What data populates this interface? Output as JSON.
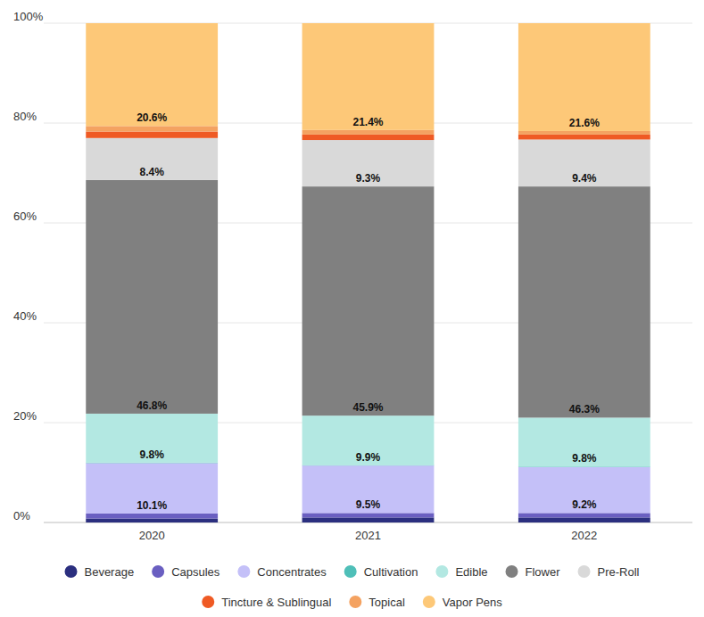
{
  "chart_data": {
    "type": "bar",
    "stacked": true,
    "data_labels": true,
    "grid": true,
    "legend": "bottom",
    "categories": [
      "2020",
      "2021",
      "2022"
    ],
    "ylim": [
      0,
      100
    ],
    "yticks": [
      {
        "value": 0,
        "label": "0%"
      },
      {
        "value": 20,
        "label": "20%"
      },
      {
        "value": 40,
        "label": "40%"
      },
      {
        "value": 60,
        "label": "60%"
      },
      {
        "value": 80,
        "label": "80%"
      },
      {
        "value": 100,
        "label": "100%"
      }
    ],
    "series": [
      {
        "name": "Beverage",
        "color": "#2b2f7f",
        "values": [
          0.8,
          1.0,
          1.0
        ]
      },
      {
        "name": "Capsules",
        "color": "#6a5fc1",
        "values": [
          1.0,
          0.9,
          0.9
        ]
      },
      {
        "name": "Concentrates",
        "color": "#c4c0f8",
        "values": [
          10.1,
          9.5,
          9.2
        ],
        "value_labels": [
          "10.1%",
          "9.5%",
          "9.2%"
        ]
      },
      {
        "name": "Cultivation",
        "color": "#4fbfb8",
        "values": [
          0.1,
          0.1,
          0.1
        ]
      },
      {
        "name": "Edible",
        "color": "#b3e8e2",
        "values": [
          9.8,
          9.9,
          9.8
        ],
        "value_labels": [
          "9.8%",
          "9.9%",
          "9.8%"
        ]
      },
      {
        "name": "Flower",
        "color": "#808080",
        "values": [
          46.8,
          45.9,
          46.3
        ],
        "value_labels": [
          "46.8%",
          "45.9%",
          "46.3%"
        ]
      },
      {
        "name": "Pre-Roll",
        "color": "#d9d9d9",
        "values": [
          8.4,
          9.3,
          9.4
        ],
        "value_labels": [
          "8.4%",
          "9.3%",
          "9.4%"
        ]
      },
      {
        "name": "Tincture & Sublingual",
        "color": "#ef5a24",
        "values": [
          1.3,
          1.1,
          1.0
        ]
      },
      {
        "name": "Topical",
        "color": "#f4a261",
        "values": [
          1.1,
          0.9,
          0.7
        ]
      },
      {
        "name": "Vapor Pens",
        "color": "#fdc878",
        "values": [
          20.6,
          21.4,
          21.6
        ],
        "value_labels": [
          "20.6%",
          "21.4%",
          "21.6%"
        ]
      }
    ]
  }
}
